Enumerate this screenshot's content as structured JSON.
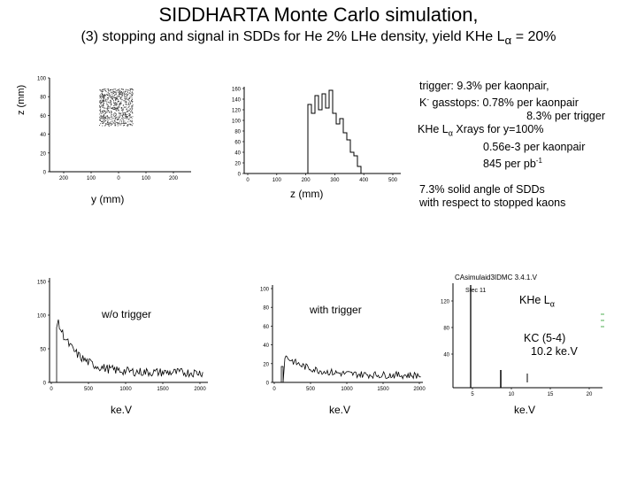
{
  "slide": {
    "title": "SIDDHARTA Monte Carlo simulation,",
    "subtitle_prefix": "(3) stopping and signal in SDDs for He 2% LHe density, yield KHe L",
    "subtitle_alpha": "α",
    "subtitle_suffix": " = 20%"
  },
  "labels": {
    "z_axis_vertical": "z (mm)",
    "y_axis": "y (mm)",
    "z_axis": "z (mm)",
    "wo_trigger": "w/o trigger",
    "with_trigger": "with trigger",
    "kev_1": "ke.V",
    "kev_2": "ke.V",
    "kev_3": "ke.V"
  },
  "info_box": {
    "line1": "trigger: 9.3% per kaonpair,",
    "line2_k": "K",
    "line2_sup": "-",
    "line2_rest": " gasstops:  0.78% per kaonpair",
    "line3": "8.3% per trigger",
    "line4_prefix": "KHe L",
    "line4_alpha": "α",
    "line4_suffix": " Xrays for y=100%",
    "line5": "0.56e-3 per kaonpair",
    "line6_prefix": "845 per pb",
    "line6_sup": "-1"
  },
  "solid_angle": {
    "line1": "7.3% solid angle of SDDs",
    "line2": "with respect to stopped kaons"
  },
  "spectrum_panel": {
    "header": "CAsimulaid3IDMC 3.4.1.V",
    "stat_label": "Stec 11",
    "khe_prefix": "KHe L",
    "khe_alpha": "α",
    "kc_line1": "KC (5-4)",
    "kc_line2": "10.2 ke.V"
  },
  "plots": {
    "scatter_yz": {
      "y_ticks": [
        "100",
        "80",
        "60",
        "40",
        "20",
        "0"
      ],
      "x_ticks": [
        "200",
        "100",
        "0",
        "100",
        "200"
      ]
    },
    "z_profile": {
      "y_ticks": [
        "160",
        "140",
        "120",
        "100",
        "80",
        "60",
        "40",
        "20",
        "0"
      ],
      "x_ticks": [
        "0",
        "100",
        "200",
        "300",
        "400",
        "500"
      ]
    },
    "wo_trigger": {
      "y_ticks": [
        "150",
        "100",
        "50",
        "0"
      ],
      "x_ticks": [
        "0",
        "500",
        "1000",
        "1500",
        "2000"
      ]
    },
    "with_trigger": {
      "y_ticks": [
        "100",
        "80",
        "60",
        "40",
        "20",
        "0"
      ],
      "x_ticks": [
        "0",
        "500",
        "1000",
        "1500",
        "2000"
      ]
    },
    "spectrum": {
      "y_ticks": [
        "120",
        "80",
        "40"
      ],
      "x_ticks": [
        "5",
        "10",
        "15",
        "20"
      ]
    }
  }
}
